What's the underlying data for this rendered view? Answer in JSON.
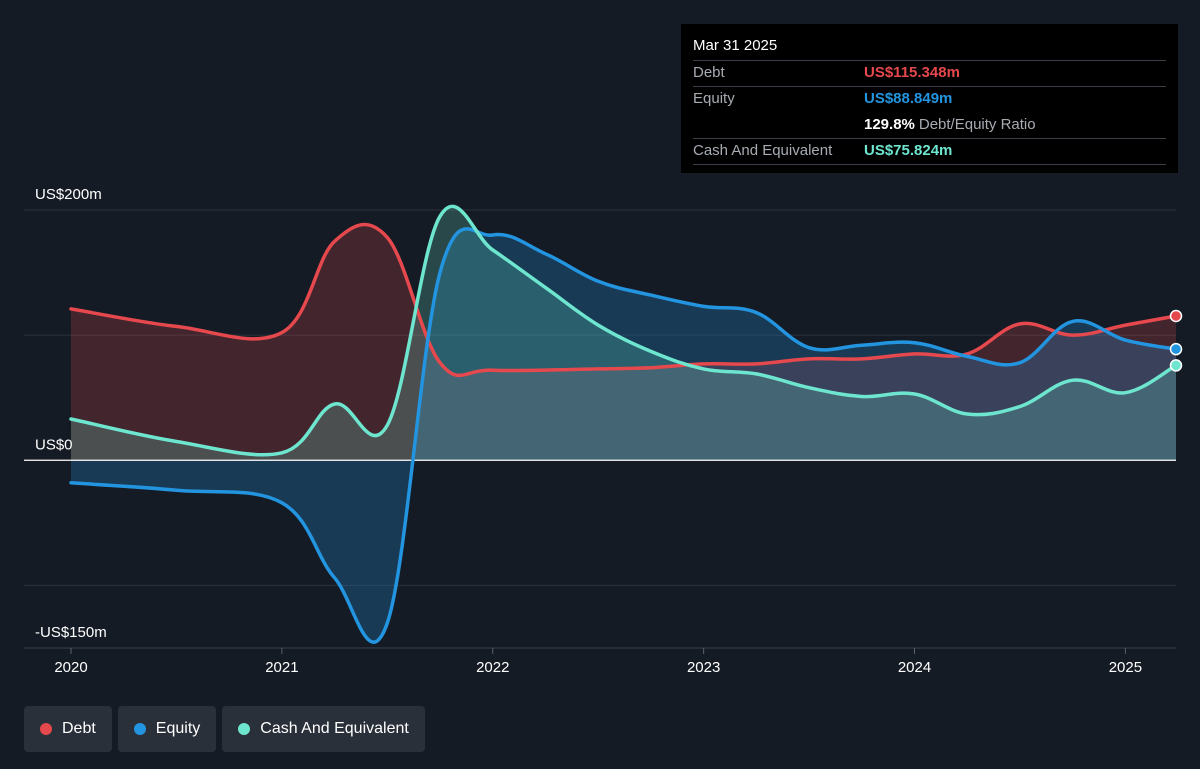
{
  "tooltip": {
    "date": "Mar 31 2025",
    "debt_label": "Debt",
    "debt_value": "US$115.348m",
    "equity_label": "Equity",
    "equity_value": "US$88.849m",
    "ratio_value": "129.8%",
    "ratio_label": "Debt/Equity Ratio",
    "cash_label": "Cash And Equivalent",
    "cash_value": "US$75.824m"
  },
  "legend": {
    "debt": "Debt",
    "equity": "Equity",
    "cash": "Cash And Equivalent"
  },
  "colors": {
    "debt": "#e5484d",
    "equity": "#2394df",
    "cash": "#6ee6cf",
    "background": "#151b24"
  },
  "chart_data": {
    "type": "area",
    "x_unit": "year",
    "xlim": [
      2020,
      2025.24
    ],
    "ylim": [
      -150,
      200
    ],
    "y_ticks": [
      {
        "value": 200,
        "label": "US$200m"
      },
      {
        "value": 0,
        "label": "US$0"
      },
      {
        "value": -150,
        "label": "-US$150m"
      }
    ],
    "x_ticks": [
      {
        "value": 2020,
        "label": "2020"
      },
      {
        "value": 2021,
        "label": "2021"
      },
      {
        "value": 2022,
        "label": "2022"
      },
      {
        "value": 2023,
        "label": "2023"
      },
      {
        "value": 2024,
        "label": "2024"
      },
      {
        "value": 2025,
        "label": "2025"
      }
    ],
    "gridlines": [
      200,
      100,
      0,
      -100
    ],
    "series": [
      {
        "name": "Debt",
        "points": [
          [
            2020,
            121
          ],
          [
            2020.5,
            107
          ],
          [
            2021,
            102
          ],
          [
            2021.25,
            175
          ],
          [
            2021.5,
            178
          ],
          [
            2021.75,
            78
          ],
          [
            2022,
            72
          ],
          [
            2022.5,
            73
          ],
          [
            2022.75,
            74
          ],
          [
            2023,
            77
          ],
          [
            2023.25,
            77
          ],
          [
            2023.5,
            81
          ],
          [
            2023.75,
            81
          ],
          [
            2024,
            85
          ],
          [
            2024.25,
            85
          ],
          [
            2024.5,
            109
          ],
          [
            2024.75,
            100
          ],
          [
            2025,
            108
          ],
          [
            2025.24,
            115.3
          ]
        ]
      },
      {
        "name": "Equity",
        "points": [
          [
            2020,
            -18
          ],
          [
            2020.5,
            -24
          ],
          [
            2021,
            -34
          ],
          [
            2021.25,
            -94
          ],
          [
            2021.5,
            -130
          ],
          [
            2021.75,
            150
          ],
          [
            2022,
            180
          ],
          [
            2022.25,
            165
          ],
          [
            2022.5,
            143
          ],
          [
            2022.75,
            132
          ],
          [
            2023,
            123
          ],
          [
            2023.25,
            118
          ],
          [
            2023.5,
            90
          ],
          [
            2023.75,
            92
          ],
          [
            2024,
            94
          ],
          [
            2024.25,
            83
          ],
          [
            2024.5,
            78
          ],
          [
            2024.75,
            111
          ],
          [
            2025,
            96
          ],
          [
            2025.24,
            88.8
          ]
        ]
      },
      {
        "name": "Cash And Equivalent",
        "points": [
          [
            2020,
            33
          ],
          [
            2020.5,
            15
          ],
          [
            2021,
            6
          ],
          [
            2021.25,
            45
          ],
          [
            2021.5,
            28
          ],
          [
            2021.75,
            195
          ],
          [
            2022,
            168
          ],
          [
            2022.25,
            138
          ],
          [
            2022.5,
            108
          ],
          [
            2022.75,
            87
          ],
          [
            2023,
            73
          ],
          [
            2023.25,
            69
          ],
          [
            2023.5,
            58
          ],
          [
            2023.75,
            51
          ],
          [
            2024,
            53
          ],
          [
            2024.25,
            37
          ],
          [
            2024.5,
            43
          ],
          [
            2024.75,
            64
          ],
          [
            2025,
            54
          ],
          [
            2025.24,
            75.8
          ]
        ]
      }
    ]
  }
}
